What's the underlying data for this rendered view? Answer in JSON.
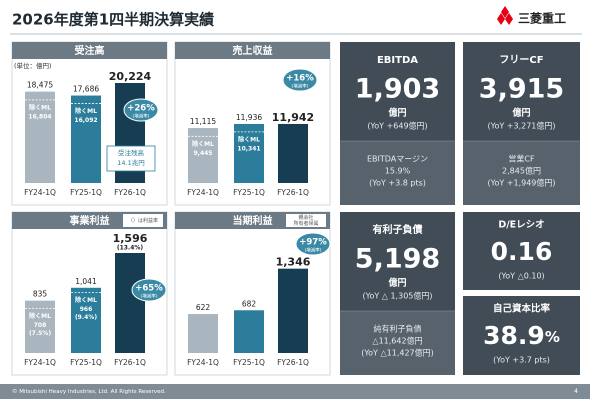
{
  "header": {
    "title": "2026年度第1四半期決算実績",
    "logo_text": "三菱重工"
  },
  "chart_data": [
    {
      "type": "bar",
      "title": "受注高",
      "unit_note": "(単位：億円)",
      "categories": [
        "FY24-1Q",
        "FY25-1Q",
        "FY26-1Q"
      ],
      "values": [
        18475,
        17686,
        20224
      ],
      "value_labels": [
        "18,475",
        "17,686",
        "20,224"
      ],
      "colors": [
        "#a9b5bf",
        "#2b7d9b",
        "#173d52"
      ],
      "excluding_ml": {
        "label": "除くML",
        "values": [
          16804,
          16092,
          null
        ],
        "value_labels": [
          "16,804",
          "16,092",
          null
        ]
      },
      "change": {
        "value": 26,
        "label": "+26%"
      },
      "change_note": "(増減率)",
      "backlog": {
        "label": "受注残高",
        "value": "14.1兆円"
      }
    },
    {
      "type": "bar",
      "title": "売上収益",
      "categories": [
        "FY24-1Q",
        "FY25-1Q",
        "FY26-1Q"
      ],
      "values": [
        11115,
        11936,
        11942
      ],
      "value_labels": [
        "11,115",
        "11,936",
        "11,942"
      ],
      "colors": [
        "#a9b5bf",
        "#2b7d9b",
        "#173d52"
      ],
      "excluding_ml": {
        "label": "除くML",
        "values": [
          9445,
          10341,
          null
        ],
        "value_labels": [
          "9,445",
          "10,341",
          null
        ]
      },
      "change": {
        "value": 16,
        "label": "+16%"
      },
      "change_note": "(増減率)"
    },
    {
      "type": "bar",
      "title": "事業利益",
      "note": [
        "（）は利益率"
      ],
      "categories": [
        "FY24-1Q",
        "FY25-1Q",
        "FY26-1Q"
      ],
      "values": [
        835,
        1041,
        1596
      ],
      "value_labels": [
        "835",
        "1,041",
        "1,596"
      ],
      "colors": [
        "#a9b5bf",
        "#2b7d9b",
        "#173d52"
      ],
      "margin": {
        "values": [
          null,
          null,
          13.4
        ],
        "value_labels": [
          null,
          null,
          "(13.4%)"
        ]
      },
      "excluding_ml": {
        "label": "除くML",
        "values": [
          708,
          966,
          null
        ],
        "value_labels": [
          "708",
          "966",
          null
        ],
        "margin_values": [
          7.5,
          9.4,
          null
        ],
        "margin_labels": [
          "(7.5%)",
          "(9.4%)",
          null
        ]
      },
      "change": {
        "value": 65,
        "label": "+65%"
      },
      "change_note": "(増減率)"
    },
    {
      "type": "bar",
      "title": "当期利益",
      "note": [
        "親会社",
        "所有者帰属"
      ],
      "categories": [
        "FY24-1Q",
        "FY25-1Q",
        "FY26-1Q"
      ],
      "values": [
        622,
        682,
        1346
      ],
      "value_labels": [
        "622",
        "682",
        "1,346"
      ],
      "colors": [
        "#a9b5bf",
        "#2b7d9b",
        "#173d52"
      ],
      "change": {
        "value": 97,
        "label": "+97%"
      },
      "change_note": "(増減率)"
    }
  ],
  "kpis": [
    {
      "title": "EBITDA",
      "value": "1,903",
      "unit": "億円",
      "yoy": "(YoY +649億円)",
      "sub": [
        "EBITDAマージン",
        "15.9%",
        "(YoY +3.8 pts)"
      ]
    },
    {
      "title": "フリーCF",
      "value": "3,915",
      "unit": "億円",
      "yoy": "(YoY +3,271億円)",
      "sub": [
        "営業CF",
        "2,845億円",
        "(YoY +1,949億円)"
      ]
    },
    {
      "title": "有利子負債",
      "value": "5,198",
      "unit": "億円",
      "yoy": "(YoY △ 1,305億円)",
      "sub": [
        "純有利子負債",
        "△11,642億円",
        "(YoY △11,427億円)"
      ]
    },
    {
      "title": "D/Eレシオ",
      "value": "0.16",
      "yoy": "(YoY △0.10)"
    },
    {
      "title": "自己資本比率",
      "value": "38.9",
      "unit": "%",
      "yoy": "(YoY +3.7 pts)"
    }
  ],
  "footer": {
    "copyright": "© Mitsubishi Heavy Industries, Ltd.  All Rights Reserved.",
    "page": "4"
  }
}
